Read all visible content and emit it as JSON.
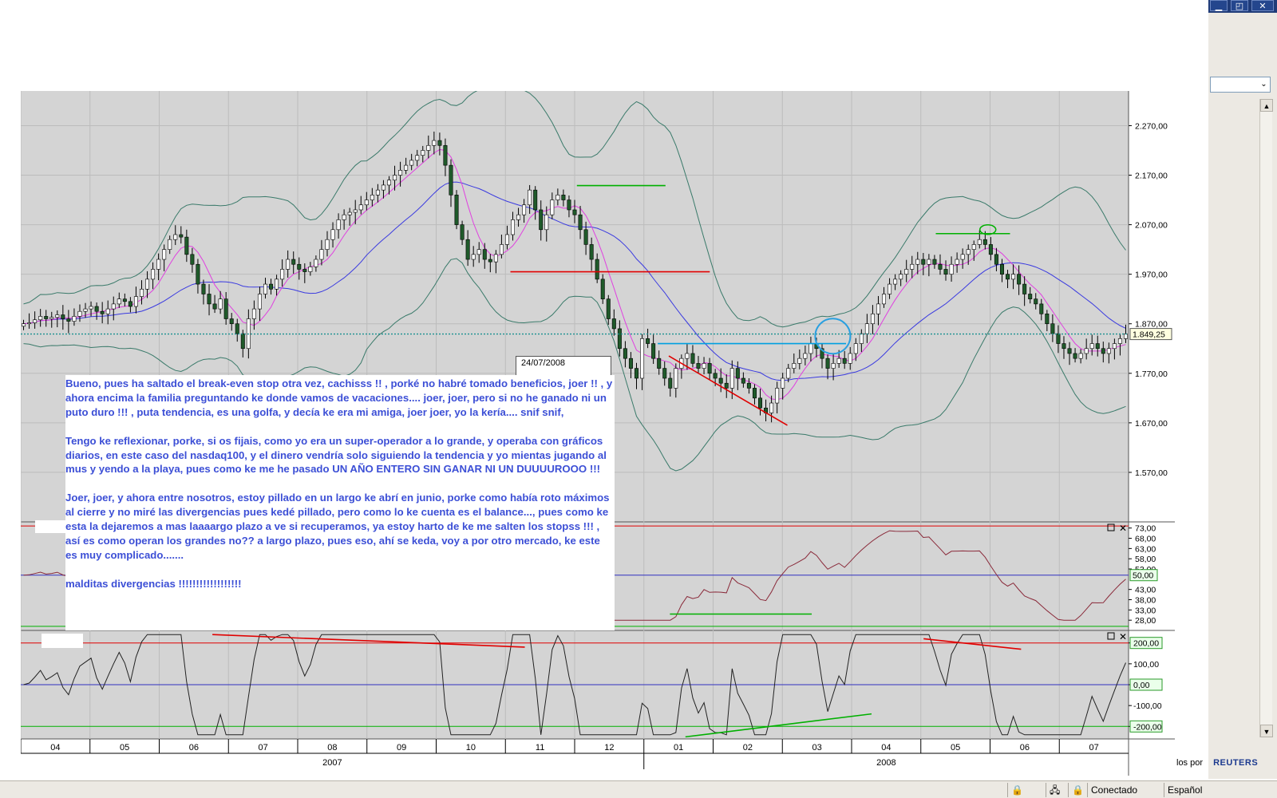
{
  "window": {
    "buttons": [
      "▁",
      "◰",
      "✕"
    ]
  },
  "sidebar": {
    "combo_arrow": "⌄",
    "reuters_prefix": "los por",
    "reuters_brand": "REUTERS"
  },
  "statusbar": {
    "connection": "Conectado",
    "language": "Español"
  },
  "tooltip": {
    "date": "24/07/2008"
  },
  "comment": {
    "paragraphs": [
      "Bueno, pues ha saltado el break-even stop otra vez, cachisss !! , porké no habré tomado beneficios, joer !! , y ahora encima la familia preguntando ke donde vamos de vacaciones.... joer, joer, pero si no he ganado ni un puto duro !!! , puta tendencia, es una golfa, y decía ke era mi amiga, joer joer, yo la kería.... snif snif,",
      "Tengo ke reflexionar, porke, si os fijais, como yo era un super-operador a lo grande, y operaba con gráficos diarios, en este caso del nasdaq100, y el dinero vendría solo siguiendo la tendencia y yo mientas jugando al mus y yendo a la playa, pues como ke me he pasado UN AÑO ENTERO SIN GANAR NI UN DUUUUROOO !!!",
      "Joer, joer, y ahora entre nosotros, estoy pillado en un largo ke abrí en junio, porke como había roto máximos al cierre y no miré las divergencias pues kedé pillado, pero como lo ke cuenta es el balance..., pues como ke esta la dejaremos a mas laaaargo plazo a ve si recuperamos, ya estoy harto de ke me salten los stopss !!! , así es como operan los grandes no?? a largo plazo, pues eso, ahí se keda, voy a por otro mercado, ke este es muy complicado.......",
      "malditas divergencias !!!!!!!!!!!!!!!!!!"
    ]
  },
  "chart_data": [
    {
      "type": "candlestick",
      "panel": "price",
      "ylim": [
        1470,
        2340
      ],
      "y_ticks": [
        "2.270,00",
        "2.170,00",
        "2.070,00",
        "1.970,00",
        "1.870,00",
        "1.770,00",
        "1.670,00",
        "1.570,00"
      ],
      "y_tick_values": [
        2270,
        2170,
        2070,
        1970,
        1870,
        1770,
        1670,
        1570
      ],
      "last_value": 1849.25,
      "last_label": "1.849,25",
      "months": [
        "04",
        "05",
        "06",
        "07",
        "08",
        "09",
        "10",
        "11",
        "12",
        "01",
        "02",
        "03",
        "04",
        "05",
        "06",
        "07"
      ],
      "years": [
        "2007",
        "2008"
      ],
      "close_series": [
        1870,
        1872,
        1878,
        1885,
        1880,
        1883,
        1888,
        1880,
        1875,
        1885,
        1895,
        1900,
        1905,
        1895,
        1890,
        1900,
        1910,
        1920,
        1915,
        1905,
        1925,
        1940,
        1960,
        1980,
        2000,
        2020,
        2040,
        2050,
        2045,
        2010,
        1990,
        1950,
        1930,
        1910,
        1900,
        1920,
        1880,
        1870,
        1850,
        1820,
        1880,
        1900,
        1930,
        1950,
        1940,
        1960,
        1980,
        2000,
        1990,
        1980,
        1975,
        1985,
        2000,
        2020,
        2040,
        2060,
        2080,
        2090,
        2095,
        2100,
        2110,
        2120,
        2130,
        2140,
        2150,
        2160,
        2170,
        2180,
        2190,
        2200,
        2210,
        2220,
        2230,
        2240,
        2230,
        2190,
        2130,
        2070,
        2040,
        2000,
        2010,
        2020,
        2000,
        1995,
        2010,
        2030,
        2050,
        2080,
        2090,
        2110,
        2140,
        2100,
        2060,
        2090,
        2120,
        2130,
        2120,
        2100,
        2090,
        2060,
        2030,
        2000,
        1960,
        1920,
        1880,
        1860,
        1820,
        1800,
        1780,
        1760,
        1840,
        1830,
        1800,
        1780,
        1760,
        1740,
        1780,
        1800,
        1810,
        1790,
        1780,
        1790,
        1770,
        1760,
        1750,
        1740,
        1780,
        1760,
        1750,
        1740,
        1720,
        1700,
        1690,
        1710,
        1740,
        1760,
        1780,
        1790,
        1800,
        1810,
        1830,
        1820,
        1800,
        1780,
        1790,
        1800,
        1790,
        1810,
        1830,
        1850,
        1870,
        1890,
        1910,
        1930,
        1950,
        1960,
        1970,
        1980,
        1990,
        2000,
        1990,
        2000,
        1990,
        1980,
        1970,
        1990,
        2000,
        2010,
        2020,
        2030,
        2040,
        2030,
        2010,
        1990,
        1970,
        1960,
        1970,
        1950,
        1930,
        1920,
        1910,
        1890,
        1870,
        1850,
        1830,
        1820,
        1810,
        1800,
        1810,
        1820,
        1830,
        1820,
        1810,
        1820,
        1830,
        1840,
        1849.25
      ],
      "sma_fast_color": "#e040e0",
      "sma_slow_color": "#3a3ae0",
      "band_color": "#3a7a6a",
      "annotations": [
        {
          "kind": "line",
          "color": "#00b000",
          "x0": 0.502,
          "y0": 2149,
          "x1": 0.582,
          "y1": 2149
        },
        {
          "kind": "line",
          "color": "#e00000",
          "x0": 0.442,
          "y0": 1975,
          "x1": 0.622,
          "y1": 1975
        },
        {
          "kind": "line",
          "color": "#e00000",
          "x0": 0.585,
          "y0": 1805,
          "x1": 0.692,
          "y1": 1665
        },
        {
          "kind": "line",
          "color": "#00a0e0",
          "x0": 0.575,
          "y0": 1830,
          "x1": 0.745,
          "y1": 1830
        },
        {
          "kind": "line",
          "color": "#00b000",
          "x0": 0.826,
          "y0": 2052,
          "x1": 0.893,
          "y1": 2052
        }
      ]
    },
    {
      "type": "line",
      "panel": "oscillator1",
      "ylim": [
        23,
        76
      ],
      "y_ticks": [
        "73,00",
        "68,00",
        "63,00",
        "58,00",
        "53,00",
        "43,00",
        "38,00",
        "33,00",
        "28,00"
      ],
      "y_tick_values": [
        73,
        68,
        63,
        58,
        53,
        43,
        38,
        33,
        28
      ],
      "level_label": "50,00",
      "level_value": 50,
      "reference_lines": [
        74,
        50,
        25
      ]
    },
    {
      "type": "line",
      "panel": "oscillator2",
      "ylim": [
        -260,
        260
      ],
      "y_ticks": [
        "200,00",
        "100,00",
        "0,00",
        "-100,00",
        "-200,00"
      ],
      "y_tick_values": [
        200,
        100,
        0,
        -100,
        -200
      ],
      "reference_lines": [
        200,
        0,
        -200
      ]
    }
  ]
}
